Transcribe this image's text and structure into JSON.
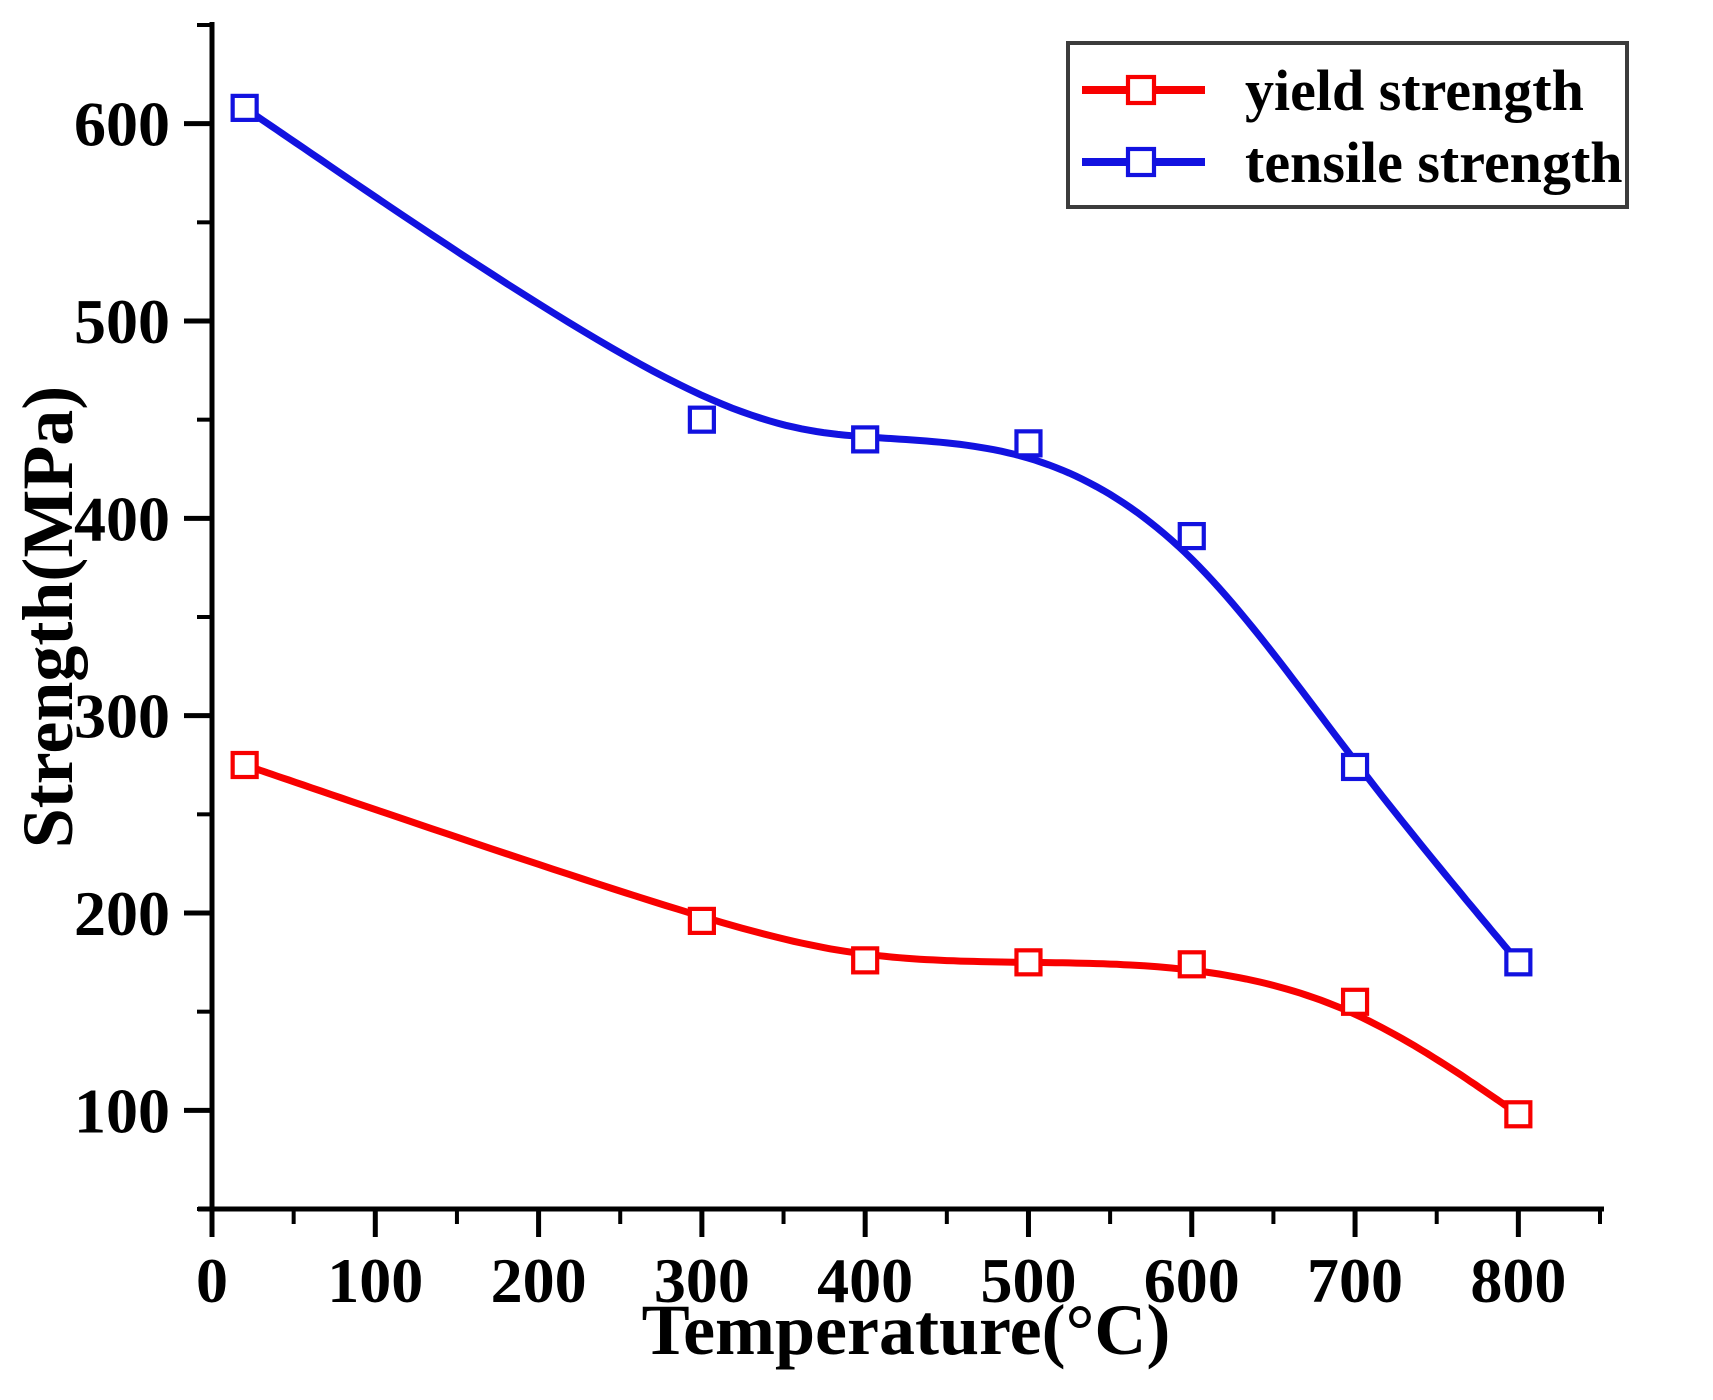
{
  "figure": {
    "background": "#ffffff"
  },
  "chart_data": {
    "type": "line",
    "title": "",
    "xlabel": "Temperature(°C)",
    "ylabel": "Strength(MPa)",
    "x": [
      20,
      300,
      400,
      500,
      600,
      700,
      800
    ],
    "series": [
      {
        "name": "yield strength",
        "color": "#f80000",
        "marker": "open-square",
        "line_style": "b-spline",
        "values": [
          275,
          196,
          176,
          175,
          174,
          155,
          98
        ]
      },
      {
        "name": "tensile strength",
        "color": "#1212e0",
        "marker": "open-square",
        "line_style": "b-spline",
        "values": [
          608,
          450,
          440,
          438,
          391,
          274,
          175
        ]
      }
    ],
    "xlim": [
      0,
      850
    ],
    "ylim": [
      50,
      650
    ],
    "x_major_ticks": [
      0,
      100,
      200,
      300,
      400,
      500,
      600,
      700,
      800
    ],
    "x_tick_labels": [
      "0",
      "100",
      "200",
      "300",
      "400",
      "500",
      "600",
      "700",
      "800"
    ],
    "x_minor_step": 50,
    "y_major_ticks": [
      100,
      200,
      300,
      400,
      500,
      600
    ],
    "y_tick_labels": [
      "100",
      "200",
      "300",
      "400",
      "500",
      "600"
    ],
    "y_minor_step": 50,
    "grid": false,
    "axis_color": "#000000",
    "legend": {
      "position": "top-right",
      "border_color": "#3c3c3c",
      "background": "#ffffff",
      "entries": [
        "yield strength",
        "tensile strength"
      ]
    }
  }
}
